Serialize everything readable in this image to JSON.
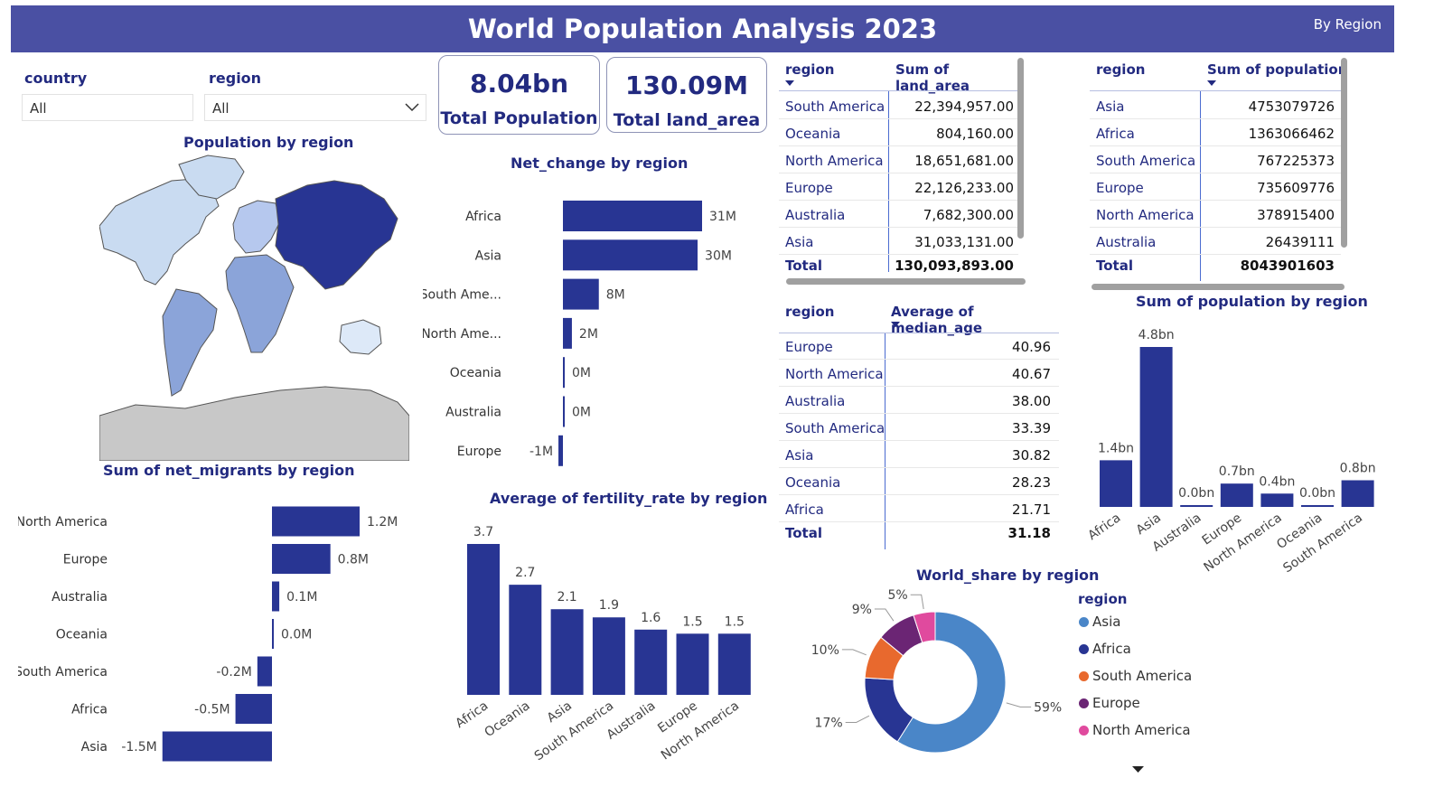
{
  "header": {
    "title": "World Population Analysis 2023",
    "subtitle": "By Region"
  },
  "slicers": {
    "country": {
      "label": "country",
      "value": "All"
    },
    "region": {
      "label": "region",
      "value": "All"
    }
  },
  "cards": [
    {
      "value": "8.04bn",
      "label": "Total Population"
    },
    {
      "value": "130.09M",
      "label": "Total land_area"
    }
  ],
  "colors": {
    "primary": "#283593",
    "header": "#4a50a3",
    "title": "#222a80"
  },
  "map": {
    "title": "Population by region"
  },
  "land_table": {
    "headers": [
      "region",
      "Sum of land_area"
    ],
    "rows": [
      [
        "South America",
        "22,394,957.00"
      ],
      [
        "Oceania",
        "804,160.00"
      ],
      [
        "North America",
        "18,651,681.00"
      ],
      [
        "Europe",
        "22,126,233.00"
      ],
      [
        "Australia",
        "7,682,300.00"
      ],
      [
        "Asia",
        "31,033,131.00"
      ]
    ],
    "total": [
      "Total",
      "130,093,893.00"
    ]
  },
  "pop_table": {
    "headers": [
      "region",
      "Sum of population"
    ],
    "rows": [
      [
        "Asia",
        "4753079726"
      ],
      [
        "Africa",
        "1363066462"
      ],
      [
        "South America",
        "767225373"
      ],
      [
        "Europe",
        "735609776"
      ],
      [
        "North America",
        "378915400"
      ],
      [
        "Australia",
        "26439111"
      ]
    ],
    "total": [
      "Total",
      "8043901603"
    ]
  },
  "age_table": {
    "headers": [
      "region",
      "Average of median_age"
    ],
    "rows": [
      [
        "Europe",
        "40.96"
      ],
      [
        "North America",
        "40.67"
      ],
      [
        "Australia",
        "38.00"
      ],
      [
        "South America",
        "33.39"
      ],
      [
        "Asia",
        "30.82"
      ],
      [
        "Oceania",
        "28.23"
      ],
      [
        "Africa",
        "21.71"
      ]
    ],
    "total": [
      "Total",
      "31.18"
    ]
  },
  "chart_data": [
    {
      "id": "net_change",
      "type": "bar",
      "orientation": "horizontal",
      "title": "Net_change by region",
      "categories": [
        "Africa",
        "Asia",
        "South Ame...",
        "North Ame...",
        "Oceania",
        "Australia",
        "Europe"
      ],
      "values": [
        31,
        30,
        8,
        2,
        0,
        0,
        -1
      ],
      "labels": [
        "31M",
        "30M",
        "8M",
        "2M",
        "0M",
        "0M",
        "-1M"
      ],
      "unit": "M"
    },
    {
      "id": "net_migrants",
      "type": "bar",
      "orientation": "horizontal",
      "title": "Sum of net_migrants by region",
      "categories": [
        "North America",
        "Europe",
        "Australia",
        "Oceania",
        "South America",
        "Africa",
        "Asia"
      ],
      "values": [
        1.2,
        0.8,
        0.1,
        0.0,
        -0.2,
        -0.5,
        -1.5
      ],
      "labels": [
        "1.2M",
        "0.8M",
        "0.1M",
        "0.0M",
        "-0.2M",
        "-0.5M",
        "-1.5M"
      ],
      "unit": "M"
    },
    {
      "id": "fertility",
      "type": "bar",
      "title": "Average of fertility_rate by region",
      "categories": [
        "Africa",
        "Oceania",
        "Asia",
        "South America",
        "Australia",
        "Europe",
        "North America"
      ],
      "values": [
        3.7,
        2.7,
        2.1,
        1.9,
        1.6,
        1.5,
        1.5
      ],
      "labels": [
        "3.7",
        "2.7",
        "2.1",
        "1.9",
        "1.6",
        "1.5",
        "1.5"
      ]
    },
    {
      "id": "population",
      "type": "bar",
      "title": "Sum of population by region",
      "categories": [
        "Africa",
        "Asia",
        "Australia",
        "Europe",
        "North America",
        "Oceania",
        "South America"
      ],
      "values": [
        1.4,
        4.8,
        0.0,
        0.7,
        0.4,
        0.0,
        0.8
      ],
      "labels": [
        "1.4bn",
        "4.8bn",
        "0.0bn",
        "0.7bn",
        "0.4bn",
        "0.0bn",
        "0.8bn"
      ],
      "unit": "bn"
    },
    {
      "id": "world_share",
      "type": "pie",
      "title": "World_share by region",
      "legend_title": "region",
      "categories": [
        "Asia",
        "Africa",
        "South America",
        "Europe",
        "North America"
      ],
      "values": [
        59,
        17,
        10,
        9,
        5
      ],
      "labels": [
        "59%",
        "17%",
        "10%",
        "9%",
        "5%"
      ],
      "colors": [
        "#4a86c8",
        "#283593",
        "#e8692e",
        "#6b2574",
        "#e04a9e"
      ]
    }
  ]
}
